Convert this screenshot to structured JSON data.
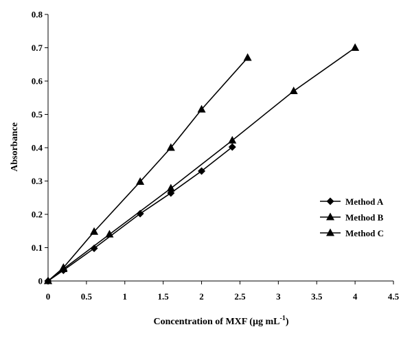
{
  "chart_data": {
    "type": "line",
    "xlabel": "Concentration of MXF (µg mL⁻¹)",
    "ylabel": "Absorbance",
    "xlim": [
      0,
      4.5
    ],
    "ylim": [
      0,
      0.8
    ],
    "xticks": [
      "0",
      "0.5",
      "1",
      "1.5",
      "2",
      "2.5",
      "3",
      "3.5",
      "4",
      "4.5"
    ],
    "yticks": [
      "0",
      "0.1",
      "0.2",
      "0.3",
      "0.4",
      "0.5",
      "0.6",
      "0.7",
      "0.8"
    ],
    "grid": false,
    "legend_position": "right",
    "series": [
      {
        "name": "Method A",
        "marker": "diamond",
        "color": "#000000",
        "x": [
          0,
          0.2,
          0.6,
          1.2,
          1.6,
          2.0,
          2.4
        ],
        "y": [
          0,
          0.032,
          0.098,
          0.202,
          0.264,
          0.33,
          0.402
        ]
      },
      {
        "name": "Method B",
        "marker": "triangle",
        "color": "#000000",
        "x": [
          0,
          0.2,
          0.8,
          1.6,
          2.4,
          3.2,
          4.0
        ],
        "y": [
          0,
          0.036,
          0.14,
          0.278,
          0.422,
          0.57,
          0.7
        ]
      },
      {
        "name": "Method C",
        "marker": "triangle",
        "color": "#000000",
        "x": [
          0,
          0.2,
          0.6,
          1.2,
          1.6,
          2.0,
          2.6
        ],
        "y": [
          0,
          0.04,
          0.148,
          0.298,
          0.4,
          0.515,
          0.67
        ]
      }
    ]
  }
}
